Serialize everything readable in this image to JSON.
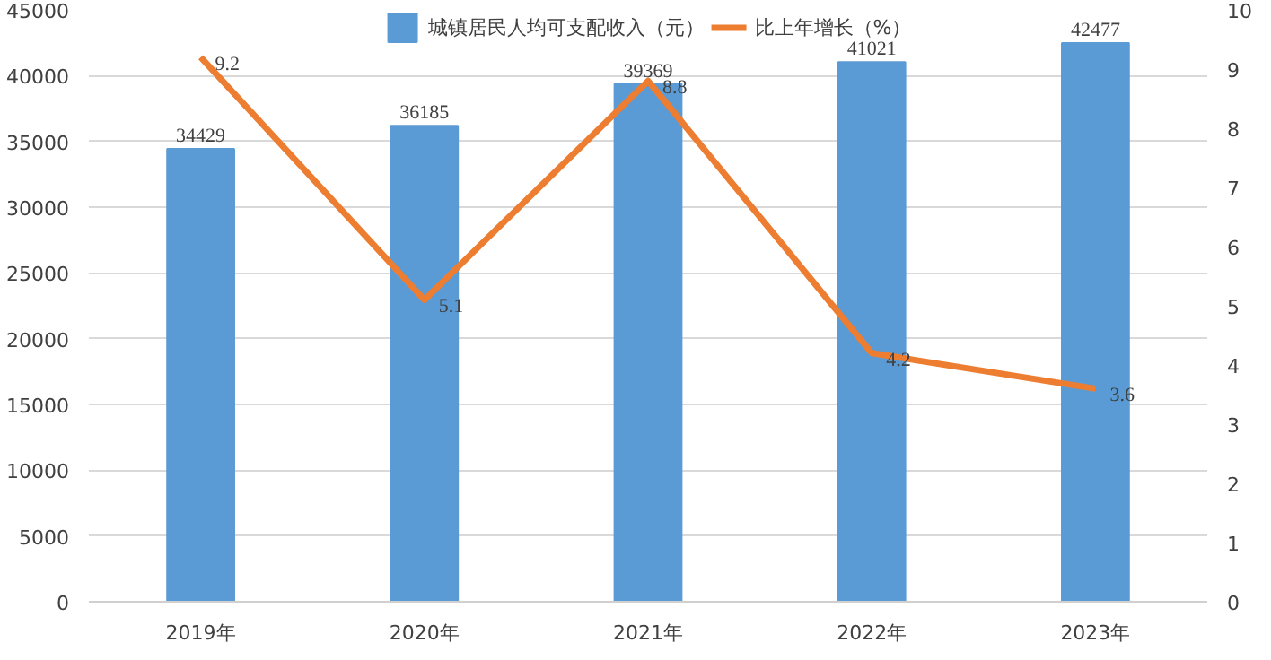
{
  "chart_data": {
    "type": "bar",
    "categories": [
      "2019年",
      "2020年",
      "2021年",
      "2022年",
      "2023年"
    ],
    "series": [
      {
        "name": "城镇居民人均可支配收入（元）",
        "color": "#5b9bd5",
        "values": [
          34429,
          36185,
          39369,
          41021,
          42477
        ]
      },
      {
        "name": "比上年增长（%）",
        "color": "#ed7d31",
        "type": "line",
        "axis": "y2",
        "values": [
          9.2,
          5.1,
          8.8,
          4.2,
          3.6
        ]
      }
    ],
    "ylim": [
      0,
      45000
    ],
    "yticks": [
      0,
      5000,
      10000,
      15000,
      20000,
      25000,
      30000,
      35000,
      40000,
      45000
    ],
    "y2lim": [
      0,
      10
    ],
    "y2ticks": [
      0,
      1,
      2,
      3,
      4,
      5,
      6,
      7,
      8,
      9,
      10
    ],
    "grid": "y",
    "legend": "top",
    "data_labels": true,
    "marker": "none",
    "line_style": "solid"
  }
}
